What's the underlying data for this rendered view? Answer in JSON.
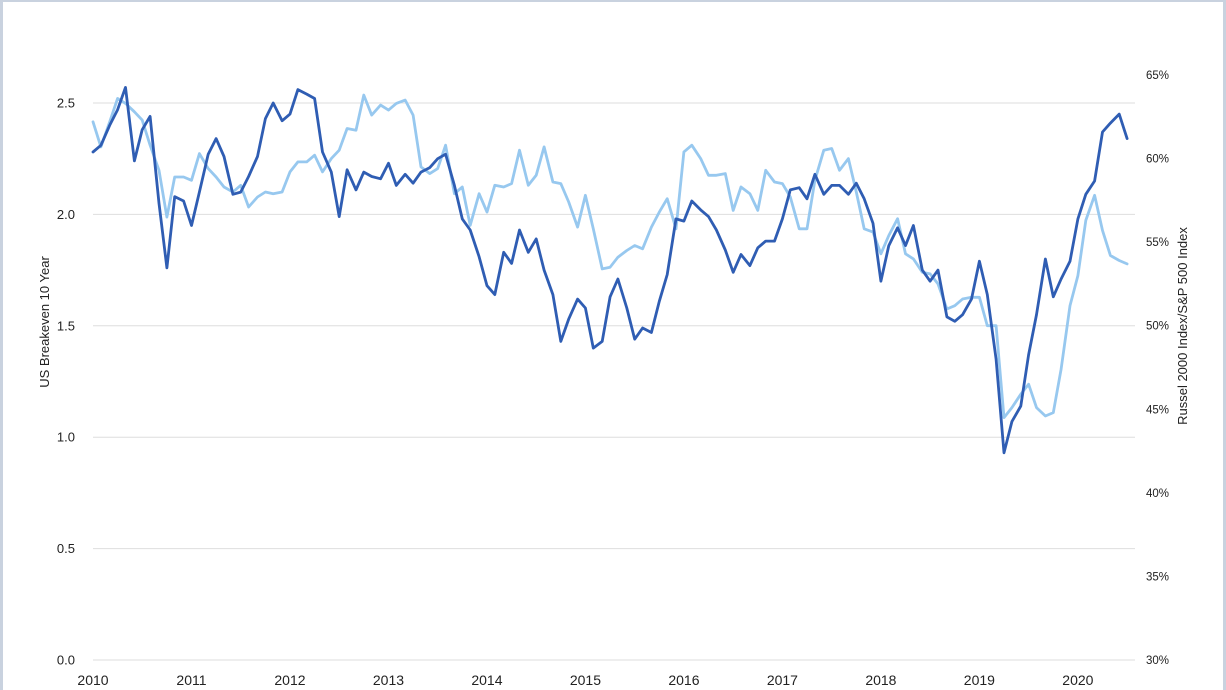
{
  "chart_data": {
    "type": "line",
    "title": "",
    "x_tick_labels": [
      "2010",
      "2011",
      "2012",
      "2013",
      "2014",
      "2015",
      "2016",
      "2017",
      "2018",
      "2019",
      "2020"
    ],
    "x_range": [
      2010.0,
      2020.58
    ],
    "left_axis": {
      "label": "US Breakeven 10 Year",
      "range": [
        0,
        2.5
      ],
      "tick_labels": [
        "0.0",
        "0.5",
        "1.0",
        "1.5",
        "2.0",
        "2.5"
      ]
    },
    "right_axis": {
      "label": "Russel 2000 Index/S&P 500 Index",
      "range": [
        30,
        65
      ],
      "tick_labels": [
        "30%",
        "35%",
        "40%",
        "45%",
        "50%",
        "55%",
        "60%",
        "65%"
      ]
    },
    "grid": "horizontal",
    "colors": {
      "breakeven": "#2f5db3",
      "ratio": "#97c8ef",
      "grid": "#dedede"
    },
    "series": [
      {
        "axis": "left",
        "x": [
          2010.0,
          2010.08,
          2010.17,
          2010.25,
          2010.33,
          2010.42,
          2010.5,
          2010.58,
          2010.67,
          2010.75,
          2010.83,
          2010.92,
          2011.0,
          2011.08,
          2011.17,
          2011.25,
          2011.33,
          2011.42,
          2011.5,
          2011.58,
          2011.67,
          2011.75,
          2011.83,
          2011.92,
          2012.0,
          2012.08,
          2012.17,
          2012.25,
          2012.33,
          2012.42,
          2012.5,
          2012.58,
          2012.67,
          2012.75,
          2012.83,
          2012.92,
          2013.0,
          2013.08,
          2013.17,
          2013.25,
          2013.33,
          2013.42,
          2013.5,
          2013.58,
          2013.67,
          2013.75,
          2013.83,
          2013.92,
          2014.0,
          2014.08,
          2014.17,
          2014.25,
          2014.33,
          2014.42,
          2014.5,
          2014.58,
          2014.67,
          2014.75,
          2014.83,
          2014.92,
          2015.0,
          2015.08,
          2015.17,
          2015.25,
          2015.33,
          2015.42,
          2015.5,
          2015.58,
          2015.67,
          2015.75,
          2015.83,
          2015.92,
          2016.0,
          2016.08,
          2016.17,
          2016.25,
          2016.33,
          2016.42,
          2016.5,
          2016.58,
          2016.67,
          2016.75,
          2016.83,
          2016.92,
          2017.0,
          2017.08,
          2017.17,
          2017.25,
          2017.33,
          2017.42,
          2017.5,
          2017.58,
          2017.67,
          2017.75,
          2017.83,
          2017.92,
          2018.0,
          2018.08,
          2018.17,
          2018.25,
          2018.33,
          2018.42,
          2018.5,
          2018.58,
          2018.67,
          2018.75,
          2018.83,
          2018.92,
          2019.0,
          2019.08,
          2019.17,
          2019.25,
          2019.33,
          2019.42,
          2019.5,
          2019.58,
          2019.67,
          2019.75,
          2019.83,
          2019.92,
          2020.0,
          2020.08,
          2020.17,
          2020.25,
          2020.33,
          2020.42,
          2020.5
        ],
        "values": [
          2.28,
          2.31,
          2.4,
          2.47,
          2.57,
          2.24,
          2.38,
          2.44,
          2.05,
          1.76,
          2.08,
          2.06,
          1.95,
          2.1,
          2.27,
          2.34,
          2.26,
          2.09,
          2.1,
          2.17,
          2.26,
          2.43,
          2.5,
          2.42,
          2.45,
          2.56,
          2.54,
          2.52,
          2.28,
          2.19,
          1.99,
          2.2,
          2.11,
          2.19,
          2.17,
          2.16,
          2.23,
          2.13,
          2.18,
          2.14,
          2.19,
          2.21,
          2.25,
          2.27,
          2.13,
          1.98,
          1.93,
          1.81,
          1.68,
          1.64,
          1.83,
          1.78,
          1.93,
          1.83,
          1.89,
          1.75,
          1.64,
          1.43,
          1.53,
          1.62,
          1.58,
          1.4,
          1.43,
          1.63,
          1.71,
          1.58,
          1.44,
          1.49,
          1.47,
          1.61,
          1.73,
          1.98,
          1.97,
          2.06,
          2.02,
          1.99,
          1.93,
          1.84,
          1.74,
          1.82,
          1.77,
          1.85,
          1.88,
          1.88,
          1.98,
          2.11,
          2.12,
          2.07,
          2.18,
          2.09,
          2.13,
          2.13,
          2.09,
          2.14,
          2.07,
          1.96,
          1.7,
          1.86,
          1.94,
          1.86,
          1.95,
          1.75,
          1.7,
          1.75,
          1.54,
          1.52,
          1.55,
          1.62,
          1.79,
          1.64,
          1.35,
          0.93,
          1.07,
          1.14,
          1.37,
          1.55,
          1.8,
          1.63,
          1.71,
          1.79,
          1.98,
          2.09,
          2.15,
          2.37,
          2.41,
          2.45,
          2.34
        ]
      },
      {
        "axis": "right",
        "x": [
          2010.0,
          2010.08,
          2010.17,
          2010.25,
          2010.33,
          2010.42,
          2010.5,
          2010.58,
          2010.67,
          2010.75,
          2010.83,
          2010.92,
          2011.0,
          2011.08,
          2011.17,
          2011.25,
          2011.33,
          2011.42,
          2011.5,
          2011.58,
          2011.67,
          2011.75,
          2011.83,
          2011.92,
          2012.0,
          2012.08,
          2012.17,
          2012.25,
          2012.33,
          2012.42,
          2012.5,
          2012.58,
          2012.67,
          2012.75,
          2012.83,
          2012.92,
          2013.0,
          2013.08,
          2013.17,
          2013.25,
          2013.33,
          2013.42,
          2013.5,
          2013.58,
          2013.67,
          2013.75,
          2013.83,
          2013.92,
          2014.0,
          2014.08,
          2014.17,
          2014.25,
          2014.33,
          2014.42,
          2014.5,
          2014.58,
          2014.67,
          2014.75,
          2014.83,
          2014.92,
          2015.0,
          2015.08,
          2015.17,
          2015.25,
          2015.33,
          2015.42,
          2015.5,
          2015.58,
          2015.67,
          2015.75,
          2015.83,
          2015.92,
          2016.0,
          2016.08,
          2016.17,
          2016.25,
          2016.33,
          2016.42,
          2016.5,
          2016.58,
          2016.67,
          2016.75,
          2016.83,
          2016.92,
          2017.0,
          2017.08,
          2017.17,
          2017.25,
          2017.33,
          2017.42,
          2017.5,
          2017.58,
          2017.67,
          2017.75,
          2017.83,
          2017.92,
          2018.0,
          2018.08,
          2018.17,
          2018.25,
          2018.33,
          2018.42,
          2018.5,
          2018.58,
          2018.67,
          2018.75,
          2018.83,
          2018.92,
          2019.0,
          2019.08,
          2019.17,
          2019.25,
          2019.33,
          2019.42,
          2019.5,
          2019.58,
          2019.67,
          2019.75,
          2019.83,
          2019.92,
          2020.0,
          2020.08,
          2020.17,
          2020.25,
          2020.33,
          2020.42,
          2020.5
        ],
        "values": [
          62.2,
          60.7,
          62.2,
          63.6,
          63.3,
          62.8,
          62.3,
          60.8,
          59.3,
          56.5,
          58.9,
          58.9,
          58.7,
          60.3,
          59.4,
          58.9,
          58.3,
          58.0,
          58.4,
          57.1,
          57.7,
          58.0,
          57.9,
          58.0,
          59.2,
          59.8,
          59.8,
          60.2,
          59.2,
          60.0,
          60.5,
          61.8,
          61.7,
          63.8,
          62.6,
          63.2,
          62.9,
          63.3,
          63.5,
          62.6,
          59.5,
          59.1,
          59.4,
          60.8,
          57.9,
          58.3,
          56.0,
          57.9,
          56.8,
          58.4,
          58.3,
          58.5,
          60.5,
          58.4,
          59.0,
          60.7,
          58.6,
          58.5,
          57.4,
          55.9,
          57.8,
          55.8,
          53.4,
          53.5,
          54.1,
          54.5,
          54.8,
          54.6,
          55.9,
          56.8,
          57.6,
          55.8,
          60.4,
          60.8,
          60.0,
          59.0,
          59.0,
          59.1,
          56.9,
          58.3,
          57.9,
          56.9,
          59.3,
          58.6,
          58.5,
          57.7,
          55.8,
          55.8,
          58.7,
          60.5,
          60.6,
          59.3,
          60.0,
          58.0,
          55.8,
          55.6,
          54.3,
          55.4,
          56.4,
          54.3,
          54.0,
          53.2,
          53.1,
          52.5,
          51.0,
          51.2,
          51.6,
          51.7,
          51.7,
          50.0,
          50.0,
          44.5,
          45.1,
          45.9,
          46.5,
          45.1,
          44.6,
          44.8,
          47.4,
          51.2,
          53.0,
          56.3,
          57.8,
          55.7,
          54.2,
          53.9,
          53.7
        ]
      }
    ]
  }
}
